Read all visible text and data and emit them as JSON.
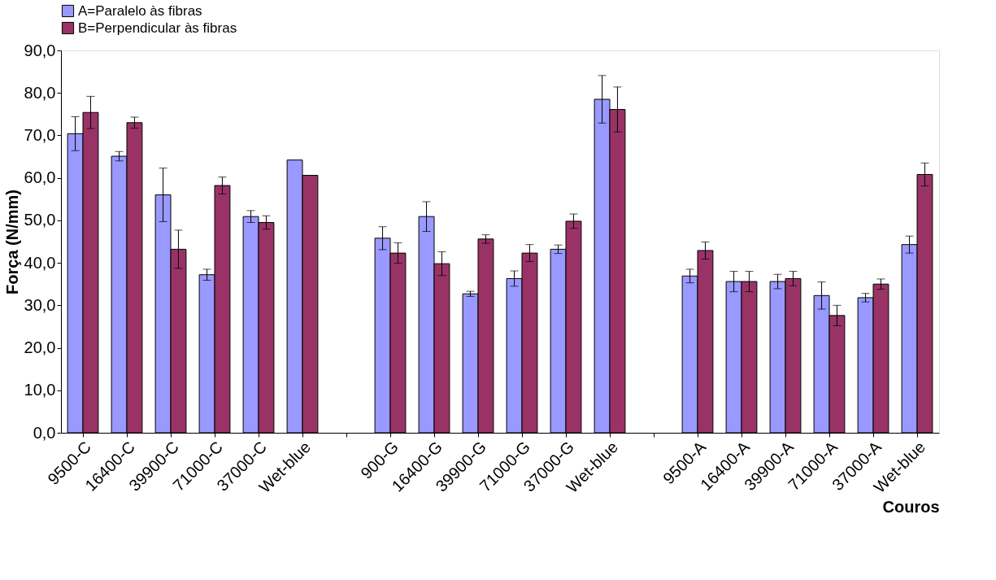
{
  "chart_data": {
    "type": "bar",
    "xlabel": "Couros",
    "ylabel": "Força (N/mm)",
    "categories": [
      "9500-C",
      "16400-C",
      "39900-C",
      "71000-C",
      "37000-C",
      "Wet-blue",
      null,
      "900-G",
      "16400-G",
      "39900-G",
      "71000-G",
      "37000-G",
      "Wet-blue",
      null,
      "9500-A",
      "16400-A",
      "39900-A",
      "71000-A",
      "37000-A",
      "Wet-blue"
    ],
    "series": [
      {
        "name": "A=Paralelo às fibras",
        "color": "#9999ff",
        "values": [
          70.4,
          65.1,
          56.0,
          37.2,
          50.9,
          64.2,
          null,
          45.8,
          50.9,
          32.7,
          36.3,
          43.2,
          78.5,
          null,
          36.9,
          35.6,
          35.6,
          32.3,
          31.8,
          44.3
        ],
        "errors": [
          4.0,
          1.1,
          6.3,
          1.3,
          1.4,
          null,
          null,
          2.7,
          3.5,
          0.6,
          1.8,
          1.0,
          5.6,
          null,
          1.6,
          2.4,
          1.7,
          3.2,
          1.0,
          2.0
        ]
      },
      {
        "name": "B=Perpendicular às fibras",
        "color": "#993366",
        "values": [
          75.4,
          73.0,
          43.2,
          58.2,
          49.5,
          60.6,
          null,
          42.3,
          39.8,
          45.6,
          42.3,
          49.8,
          76.1,
          null,
          42.9,
          35.6,
          36.3,
          27.6,
          35.0,
          60.8
        ],
        "errors": [
          3.8,
          1.3,
          4.5,
          2.0,
          1.6,
          null,
          null,
          2.4,
          2.8,
          1.0,
          2.0,
          1.7,
          5.3,
          null,
          2.0,
          2.4,
          1.7,
          2.4,
          1.2,
          2.7
        ]
      }
    ],
    "ylim": [
      0,
      90
    ],
    "yticks": [
      {
        "value": 0,
        "label": "0,0"
      },
      {
        "value": 10,
        "label": "10,0"
      },
      {
        "value": 20,
        "label": "20,0"
      },
      {
        "value": 30,
        "label": "30,0"
      },
      {
        "value": 40,
        "label": "40,0"
      },
      {
        "value": 50,
        "label": "50,0"
      },
      {
        "value": 60,
        "label": "60,0"
      },
      {
        "value": 70,
        "label": "70,0"
      },
      {
        "value": 80,
        "label": "80,0"
      },
      {
        "value": 90,
        "label": "90,0"
      }
    ],
    "grid": false,
    "legend": "top"
  }
}
